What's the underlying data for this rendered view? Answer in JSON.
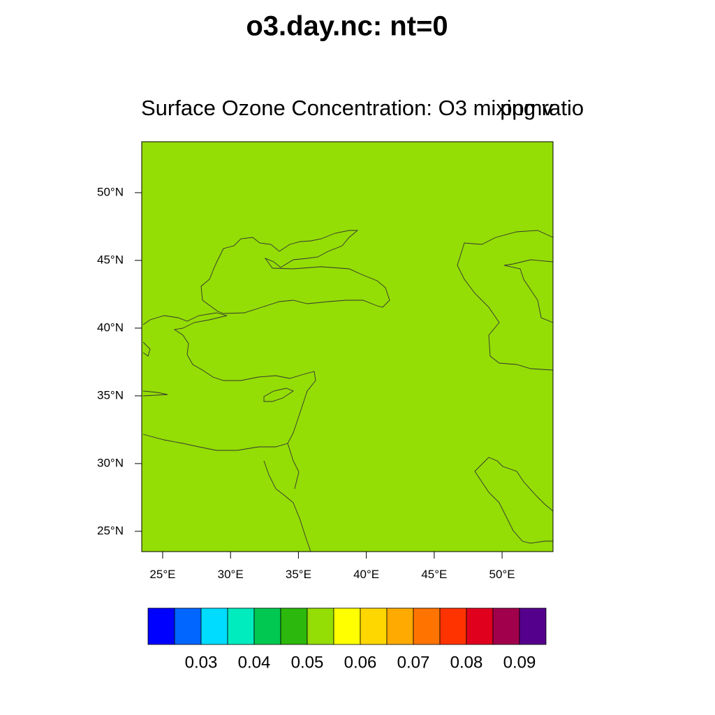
{
  "chart_data": {
    "type": "contour_map",
    "title": "o3.day.nc: nt=0",
    "subtitle_left": "Surface Ozone Concentration: O3 mixing ratio",
    "subtitle_right": "ppmv",
    "xlim": [
      23.46,
      53.75
    ],
    "ylim": [
      23.5,
      53.76
    ],
    "xticks": [
      {
        "value": 25,
        "label": "25°E"
      },
      {
        "value": 30,
        "label": "30°E"
      },
      {
        "value": 35,
        "label": "35°E"
      },
      {
        "value": 40,
        "label": "40°E"
      },
      {
        "value": 45,
        "label": "45°E"
      },
      {
        "value": 50,
        "label": "50°E"
      }
    ],
    "yticks": [
      {
        "value": 25,
        "label": "25°N"
      },
      {
        "value": 30,
        "label": "30°N"
      },
      {
        "value": 35,
        "label": "35°N"
      },
      {
        "value": 40,
        "label": "40°N"
      },
      {
        "value": 45,
        "label": "45°N"
      },
      {
        "value": 50,
        "label": "50°N"
      }
    ],
    "field_value": 0.052,
    "colorbar": {
      "levels": [
        0.025,
        0.03,
        0.035,
        0.04,
        0.045,
        0.05,
        0.055,
        0.06,
        0.065,
        0.07,
        0.075,
        0.08,
        0.085,
        0.09
      ],
      "colors": [
        "#0000ff",
        "#0066ff",
        "#00dcff",
        "#00ebbe",
        "#00c850",
        "#2cb80c",
        "#94dd05",
        "#ffff00",
        "#ffd700",
        "#ffaa00",
        "#ff7300",
        "#ff3300",
        "#e0001e",
        "#a0004c",
        "#55008c"
      ],
      "ticks": [
        0.03,
        0.04,
        0.05,
        0.06,
        0.07,
        0.08,
        0.09
      ]
    }
  }
}
